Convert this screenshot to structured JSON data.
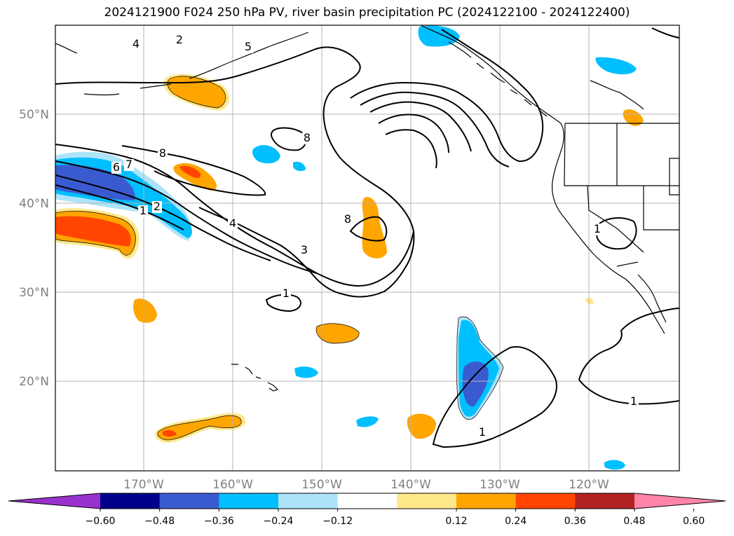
{
  "title": "2024121900 F024 250 hPa PV, river basin precipitation PC (2024122100 - 2024122400)",
  "latitude_labels": [
    "50°N",
    "40°N",
    "30°N",
    "20°N"
  ],
  "longitude_labels": [
    "170°W",
    "160°W",
    "150°W",
    "140°W",
    "130°W",
    "120°W"
  ],
  "colorbar": {
    "tick_labels": [
      "−0.60",
      "−0.48",
      "−0.36",
      "−0.24",
      "−0.12",
      "0.12",
      "0.24",
      "0.36",
      "0.48",
      "0.60"
    ],
    "colors": [
      "#9932cc",
      "#00008b",
      "#3a5bd0",
      "#00bfff",
      "#aee4fa",
      "#ffffff",
      "#ffe88a",
      "#ffa500",
      "#ff4500",
      "#b22222",
      "#ff85a8"
    ]
  },
  "contour_labels": [
    "2",
    "4",
    "5",
    "8",
    "6",
    "7",
    "1",
    "2",
    "4",
    "3",
    "8",
    "1",
    "8",
    "1",
    "1",
    "1"
  ]
}
